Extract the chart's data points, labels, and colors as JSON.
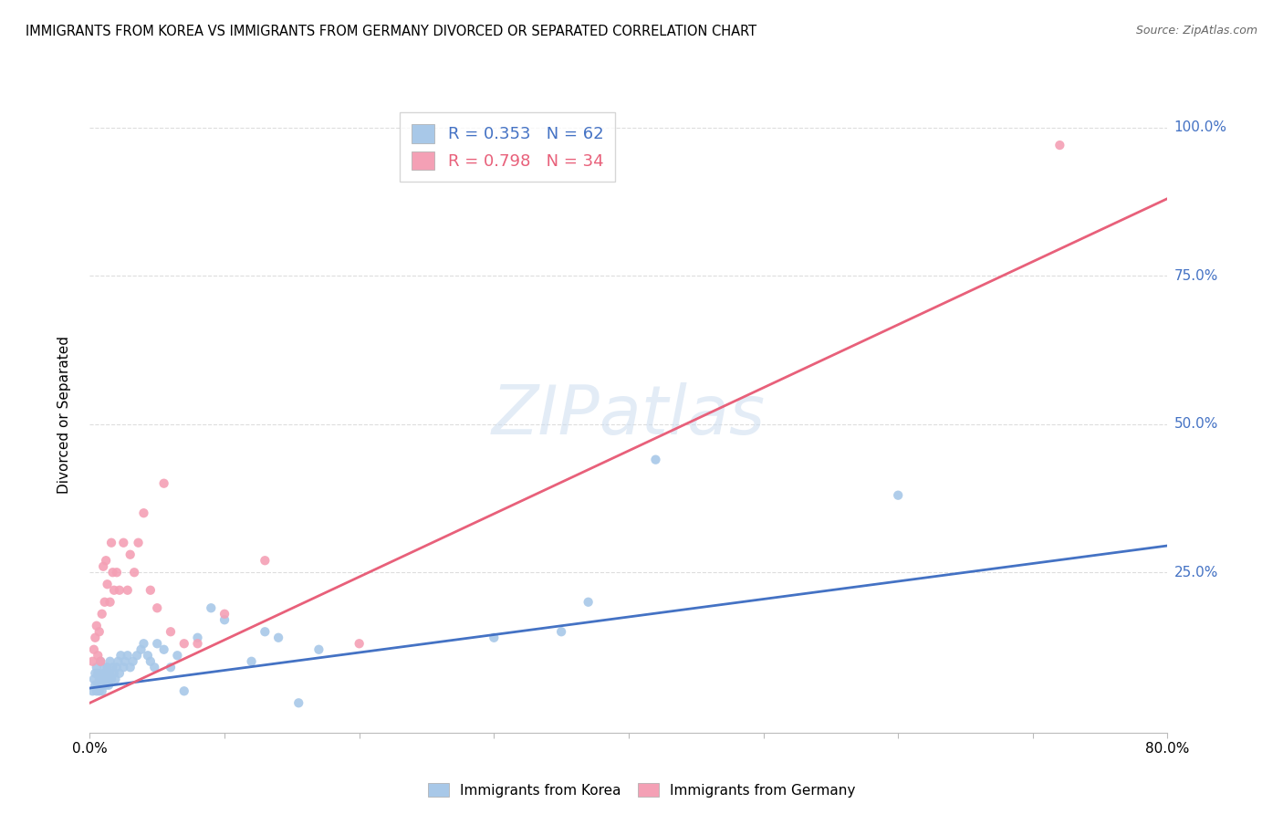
{
  "title": "IMMIGRANTS FROM KOREA VS IMMIGRANTS FROM GERMANY DIVORCED OR SEPARATED CORRELATION CHART",
  "source": "Source: ZipAtlas.com",
  "ylabel": "Divorced or Separated",
  "legend_korea_r": "R = 0.353",
  "legend_korea_n": "N = 62",
  "legend_germany_r": "R = 0.798",
  "legend_germany_n": "N = 34",
  "korea_scatter_color": "#a8c8e8",
  "germany_scatter_color": "#f4a0b5",
  "korea_line_color": "#4472c4",
  "germany_line_color": "#e8607a",
  "watermark": "ZIPatlas",
  "xlim": [
    0.0,
    0.8
  ],
  "ylim": [
    -0.02,
    1.05
  ],
  "korea_scatter_x": [
    0.002,
    0.003,
    0.004,
    0.004,
    0.005,
    0.005,
    0.006,
    0.006,
    0.007,
    0.007,
    0.008,
    0.008,
    0.009,
    0.009,
    0.01,
    0.01,
    0.011,
    0.011,
    0.012,
    0.012,
    0.013,
    0.013,
    0.014,
    0.015,
    0.015,
    0.016,
    0.017,
    0.018,
    0.019,
    0.02,
    0.021,
    0.022,
    0.023,
    0.025,
    0.026,
    0.028,
    0.03,
    0.032,
    0.035,
    0.038,
    0.04,
    0.043,
    0.045,
    0.048,
    0.05,
    0.055,
    0.06,
    0.065,
    0.07,
    0.08,
    0.09,
    0.1,
    0.12,
    0.13,
    0.14,
    0.155,
    0.17,
    0.3,
    0.35,
    0.37,
    0.42,
    0.6
  ],
  "korea_scatter_y": [
    0.05,
    0.07,
    0.06,
    0.08,
    0.05,
    0.09,
    0.06,
    0.08,
    0.05,
    0.07,
    0.06,
    0.1,
    0.05,
    0.07,
    0.06,
    0.08,
    0.07,
    0.09,
    0.06,
    0.08,
    0.07,
    0.09,
    0.06,
    0.08,
    0.1,
    0.07,
    0.09,
    0.08,
    0.07,
    0.09,
    0.1,
    0.08,
    0.11,
    0.09,
    0.1,
    0.11,
    0.09,
    0.1,
    0.11,
    0.12,
    0.13,
    0.11,
    0.1,
    0.09,
    0.13,
    0.12,
    0.09,
    0.11,
    0.05,
    0.14,
    0.19,
    0.17,
    0.1,
    0.15,
    0.14,
    0.03,
    0.12,
    0.14,
    0.15,
    0.2,
    0.44,
    0.38
  ],
  "germany_scatter_x": [
    0.002,
    0.003,
    0.004,
    0.005,
    0.006,
    0.007,
    0.008,
    0.009,
    0.01,
    0.011,
    0.012,
    0.013,
    0.015,
    0.016,
    0.017,
    0.018,
    0.02,
    0.022,
    0.025,
    0.028,
    0.03,
    0.033,
    0.036,
    0.04,
    0.045,
    0.05,
    0.055,
    0.06,
    0.07,
    0.08,
    0.1,
    0.13,
    0.2,
    0.72
  ],
  "germany_scatter_y": [
    0.1,
    0.12,
    0.14,
    0.16,
    0.11,
    0.15,
    0.1,
    0.18,
    0.26,
    0.2,
    0.27,
    0.23,
    0.2,
    0.3,
    0.25,
    0.22,
    0.25,
    0.22,
    0.3,
    0.22,
    0.28,
    0.25,
    0.3,
    0.35,
    0.22,
    0.19,
    0.4,
    0.15,
    0.13,
    0.13,
    0.18,
    0.27,
    0.13,
    0.97
  ],
  "korea_trend_x": [
    0.0,
    0.8
  ],
  "korea_trend_y": [
    0.055,
    0.295
  ],
  "germany_trend_x": [
    0.0,
    0.8
  ],
  "germany_trend_y": [
    0.03,
    0.88
  ]
}
